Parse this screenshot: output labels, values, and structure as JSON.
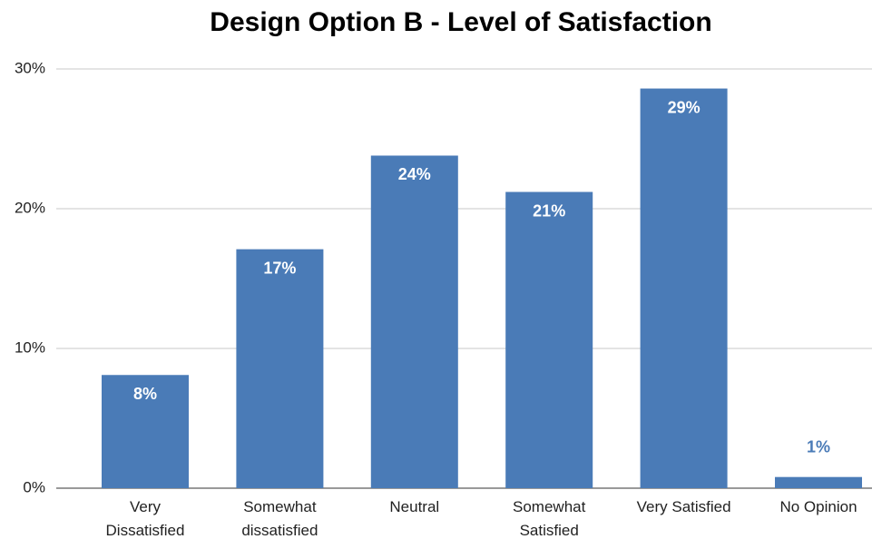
{
  "chart_data": {
    "type": "bar",
    "title": "Design Option B - Level of Satisfaction",
    "categories": [
      "Very Dissatisfied",
      "Somewhat dissatisfied",
      "Neutral",
      "Somewhat Satisfied",
      "Very Satisfied",
      "No Opinion"
    ],
    "values": [
      8.1,
      17.1,
      23.8,
      21.2,
      28.6,
      0.8
    ],
    "value_labels": [
      "8%",
      "17%",
      "24%",
      "21%",
      "29%",
      "1%"
    ],
    "color": "#4a7bb7",
    "ylim": [
      0,
      30
    ],
    "yticks": [
      {
        "value": 0,
        "label": "0%"
      },
      {
        "value": 10,
        "label": "10%"
      },
      {
        "value": 20,
        "label": "20%"
      },
      {
        "value": 30,
        "label": "30%"
      }
    ],
    "grid": true
  }
}
